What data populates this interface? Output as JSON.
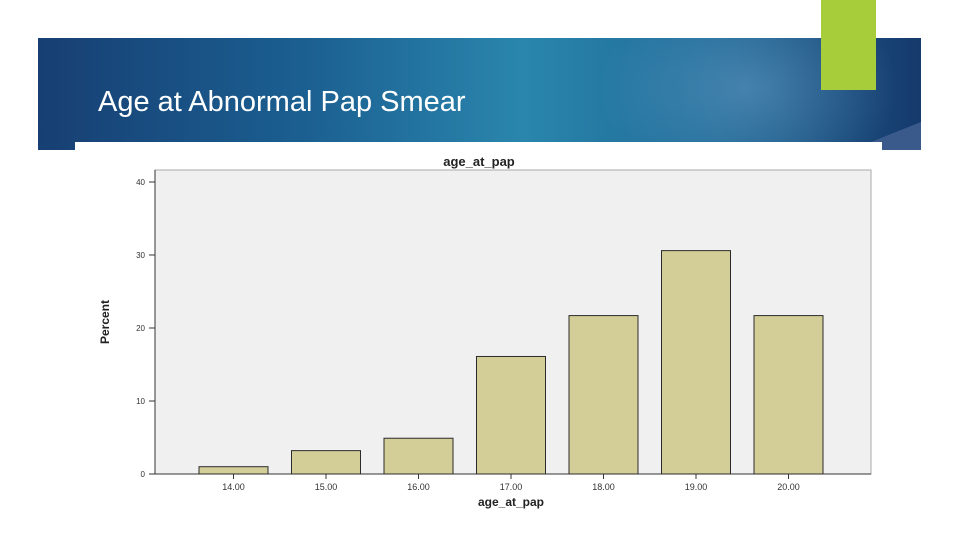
{
  "slide": {
    "title": "Age at Abnormal Pap Smear"
  },
  "colors": {
    "header_dark": "#173f73",
    "header_light": "#2a86ad",
    "accent_green": "#a8cd3a",
    "plot_background": "#f0f0f0",
    "bar_fill": "#d3ce98",
    "bar_stroke": "#2b2b2b"
  },
  "chart_data": {
    "type": "bar",
    "title": "age_at_pap",
    "xlabel": "age_at_pap",
    "ylabel": "Percent",
    "categories": [
      "14.00",
      "15.00",
      "16.00",
      "17.00",
      "18.00",
      "19.00",
      "20.00"
    ],
    "values": [
      1,
      3.2,
      4.9,
      16.1,
      21.7,
      30.6,
      21.7
    ],
    "ylim": [
      0,
      40
    ],
    "yticks": [
      "0",
      "10",
      "20",
      "30",
      "40"
    ],
    "grid": false,
    "legend": "none"
  }
}
